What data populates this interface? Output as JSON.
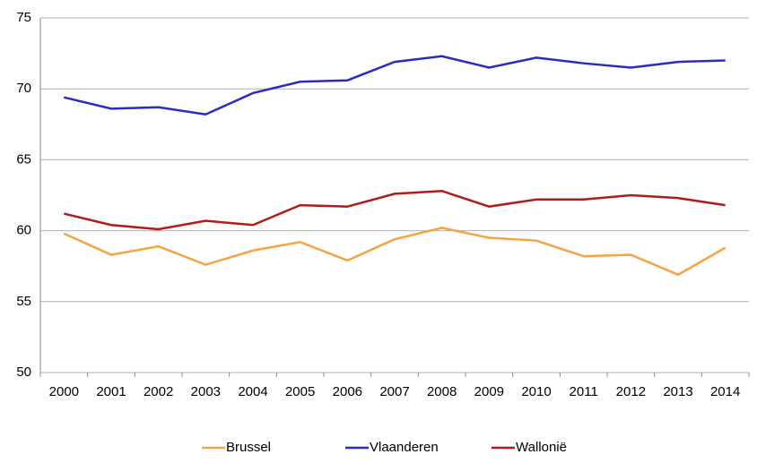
{
  "chart_data": {
    "type": "line",
    "categories": [
      "2000",
      "2001",
      "2002",
      "2003",
      "2004",
      "2005",
      "2006",
      "2007",
      "2008",
      "2009",
      "2010",
      "2011",
      "2012",
      "2013",
      "2014"
    ],
    "series": [
      {
        "name": "Brussel",
        "color": "#f7a343",
        "values": [
          59.8,
          58.3,
          58.9,
          57.6,
          58.6,
          59.2,
          57.9,
          59.4,
          60.2,
          59.5,
          59.3,
          58.2,
          58.3,
          56.9,
          58.8
        ]
      },
      {
        "name": "Vlaanderen",
        "color": "#2b2bbf",
        "values": [
          69.4,
          68.6,
          68.7,
          68.2,
          69.7,
          70.5,
          70.6,
          71.9,
          72.3,
          71.5,
          72.2,
          71.8,
          71.5,
          71.9,
          72.0
        ]
      },
      {
        "name": "Wallonië",
        "color": "#b01c1c",
        "values": [
          61.2,
          60.4,
          60.1,
          60.7,
          60.4,
          61.8,
          61.7,
          62.6,
          62.8,
          61.7,
          62.2,
          62.2,
          62.5,
          62.3,
          61.8
        ]
      }
    ],
    "ylim": [
      50,
      75
    ],
    "yticks": [
      50,
      55,
      60,
      65,
      70,
      75
    ],
    "grid": true,
    "legend": "bottom"
  }
}
